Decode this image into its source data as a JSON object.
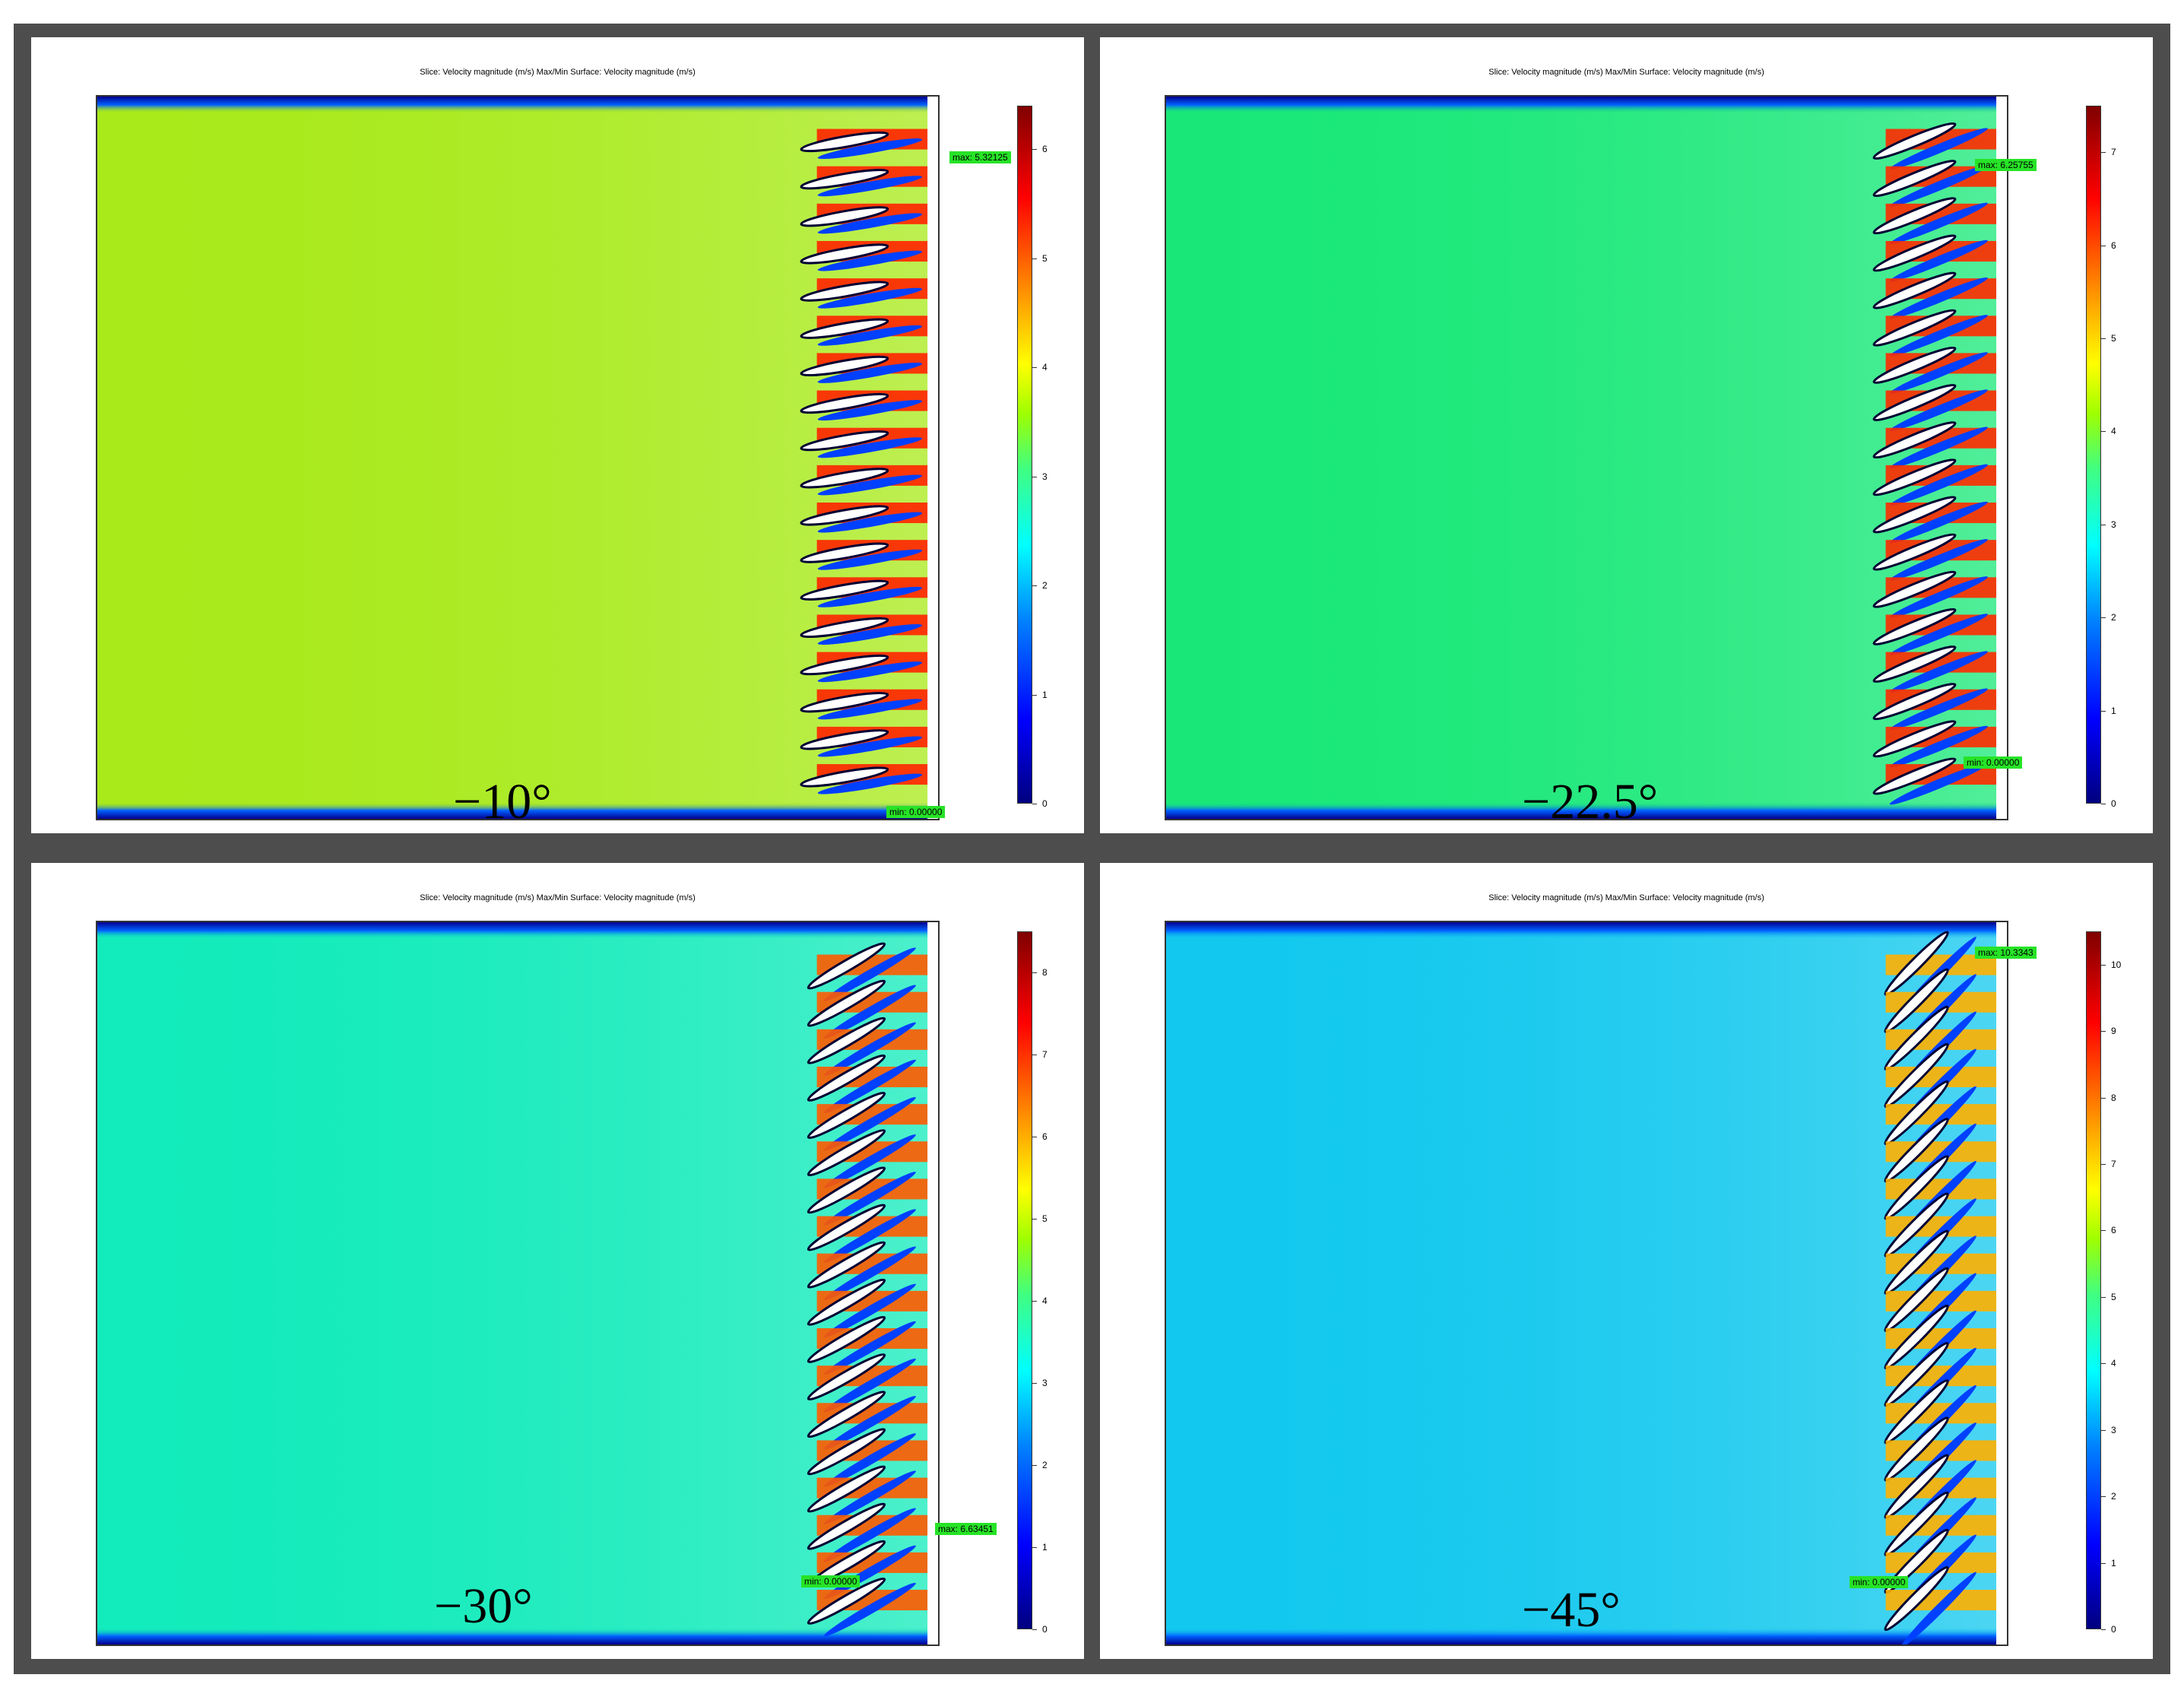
{
  "panels": [
    {
      "title": "Slice: Velocity magnitude (m/s)  Max/Min Surface: Velocity magnitude (m/s)",
      "angle": "−10°",
      "max_label": "max: 5.32125",
      "min_label": "min: 0.00000",
      "colorbar_ticks": [
        "0",
        "1",
        "2",
        "3",
        "4",
        "5",
        "6"
      ],
      "colorbar_max": 6.4,
      "field_color": "#a8ea1a",
      "band_color": "#ff2200",
      "blade_tilt": 10
    },
    {
      "title": "Slice: Velocity magnitude (m/s)  Max/Min Surface: Velocity magnitude (m/s)",
      "angle": "−22.5°",
      "max_label": "max: 6.25755",
      "min_label": "min: 0.00000",
      "colorbar_ticks": [
        "0",
        "1",
        "2",
        "3",
        "4",
        "5",
        "6",
        "7"
      ],
      "colorbar_max": 7.5,
      "field_color": "#19e878",
      "band_color": "#ff2a00",
      "blade_tilt": 22.5
    },
    {
      "title": "Slice: Velocity magnitude (m/s)  Max/Min Surface: Velocity magnitude (m/s)",
      "angle": "−30°",
      "max_label": "max: 6.63451",
      "min_label": "min: 0.00000",
      "colorbar_ticks": [
        "0",
        "1",
        "2",
        "3",
        "4",
        "5",
        "6",
        "7",
        "8"
      ],
      "colorbar_max": 8.5,
      "field_color": "#12ebbb",
      "band_color": "#ff5a00",
      "blade_tilt": 30
    },
    {
      "title": "Slice: Velocity magnitude (m/s)  Max/Min Surface: Velocity magnitude (m/s)",
      "angle": "−45°",
      "max_label": "max: 10.3343",
      "min_label": "min: 0.00000",
      "colorbar_ticks": [
        "0",
        "1",
        "2",
        "3",
        "4",
        "5",
        "6",
        "7",
        "8",
        "9",
        "10"
      ],
      "colorbar_max": 10.5,
      "field_color": "#12c8ee",
      "band_color": "#ffb000",
      "blade_tilt": 45
    }
  ]
}
